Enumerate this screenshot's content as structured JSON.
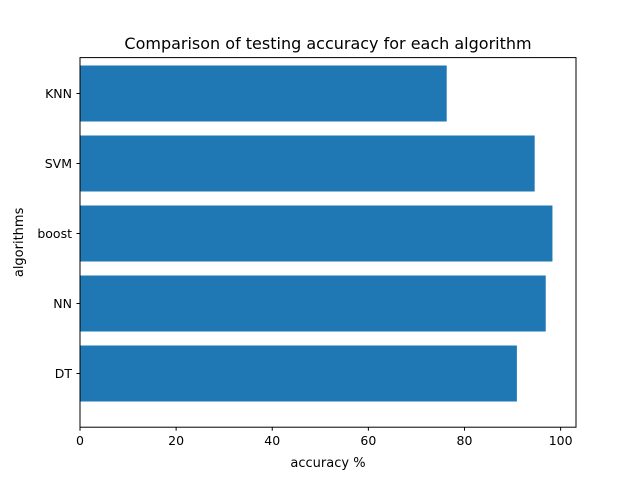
{
  "chart_data": {
    "type": "bar",
    "orientation": "horizontal",
    "title": "Comparison of testing accuracy for each algorithm",
    "xlabel": "accuracy %",
    "ylabel": "algorithms",
    "categories": [
      "DT",
      "NN",
      "boost",
      "SVM",
      "KNN"
    ],
    "values": [
      90.9,
      96.9,
      98.3,
      94.6,
      76.3
    ],
    "xlim": [
      0,
      103.2
    ],
    "xticks": [
      0,
      20,
      40,
      60,
      80,
      100
    ],
    "grid": false,
    "legend": "none",
    "bar_color": "#1f77b4"
  }
}
